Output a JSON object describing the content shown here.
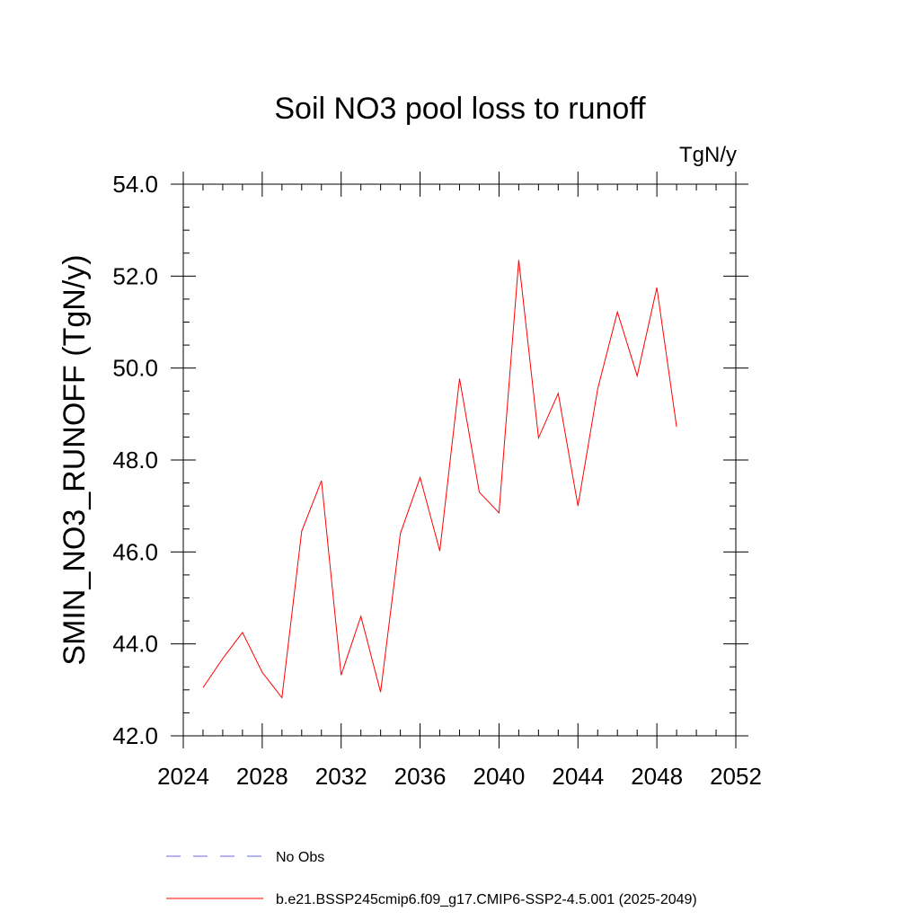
{
  "chart_data": {
    "type": "line",
    "title": "Soil NO3 pool loss to runoff",
    "units_label": "TgN/y",
    "xlabel": "",
    "ylabel": "SMIN_NO3_RUNOFF  (TgN/y)",
    "xlim": [
      2024,
      2052
    ],
    "ylim": [
      42.0,
      54.0
    ],
    "x_ticks": [
      2024,
      2028,
      2032,
      2036,
      2040,
      2044,
      2048,
      2052
    ],
    "x_tick_labels": [
      "2024",
      "2028",
      "2032",
      "2036",
      "2040",
      "2044",
      "2048",
      "2052"
    ],
    "y_ticks": [
      42.0,
      44.0,
      46.0,
      48.0,
      50.0,
      52.0,
      54.0
    ],
    "y_tick_labels": [
      "42.0",
      "44.0",
      "46.0",
      "48.0",
      "50.0",
      "52.0",
      "54.0"
    ],
    "grid": false,
    "legend_position": "bottom",
    "series": [
      {
        "name": "b.e21.BSSP245cmip6.f09_g17.CMIP6-SSP2-4.5.001 (2025-2049)",
        "color": "#ff0000",
        "dash": "solid",
        "x": [
          2025,
          2026,
          2027,
          2028,
          2029,
          2030,
          2031,
          2032,
          2033,
          2034,
          2035,
          2036,
          2037,
          2038,
          2039,
          2040,
          2041,
          2042,
          2043,
          2044,
          2045,
          2046,
          2047,
          2048,
          2049
        ],
        "values": [
          43.05,
          43.68,
          44.25,
          43.38,
          42.83,
          46.45,
          47.55,
          43.32,
          44.6,
          42.95,
          46.4,
          47.62,
          46.02,
          49.77,
          47.3,
          46.85,
          52.35,
          48.48,
          49.45,
          47.0,
          49.55,
          51.22,
          49.83,
          51.75,
          48.72
        ]
      }
    ],
    "legend": [
      {
        "label": "No Obs",
        "color": "#6a6ad0",
        "dash": "dashed"
      },
      {
        "label": "b.e21.BSSP245cmip6.f09_g17.CMIP6-SSP2-4.5.001 (2025-2049)",
        "color": "#ff0000",
        "dash": "solid"
      }
    ]
  }
}
